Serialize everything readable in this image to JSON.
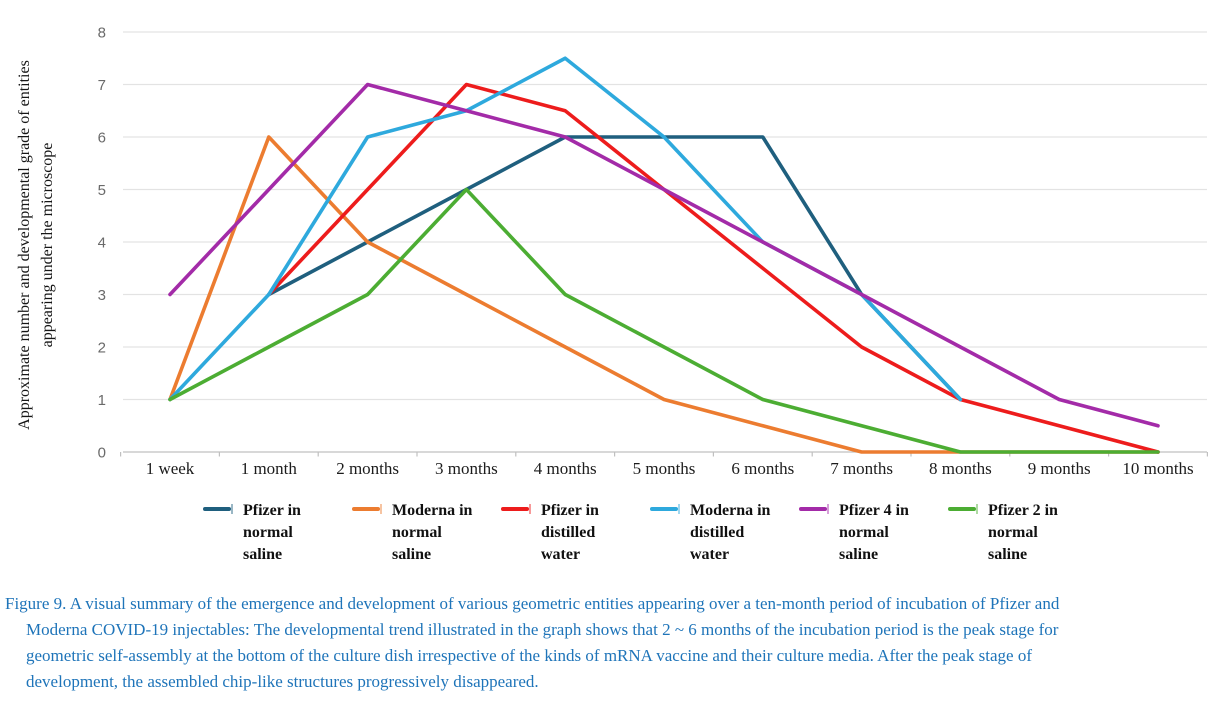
{
  "figure": {
    "caption": {
      "color": "#1E74B9",
      "lines": [
        "Figure 9. A visual summary of the emergence and development of various geometric entities appearing over a ten-month period of incubation of Pfizer and",
        "Moderna COVID-19 injectables: The developmental trend illustrated in the graph shows that 2 ~ 6 months of the incubation period is the peak stage for",
        "geometric self-assembly at the bottom of the culture dish irrespective of the kinds of mRNA vaccine and their culture media. After the peak stage of",
        "development, the assembled chip-like structures progressively disappeared."
      ]
    }
  },
  "chart_data": {
    "type": "line",
    "title": "",
    "ylabel_line1": "Approximate number and developmental grade of entities",
    "ylabel_line2": "appearing under the microscope",
    "xlabel": "",
    "ylim": [
      0,
      8
    ],
    "yticks": [
      0,
      1,
      2,
      3,
      4,
      5,
      6,
      7,
      8
    ],
    "grid": true,
    "legend_position": "bottom",
    "axis_text_color": "#6A6A6A",
    "category_text_color": "#1C1C1C",
    "gridline_color": "#E3E3E3",
    "baseline_color": "#C0C0C0",
    "categories": [
      "1 week",
      "1 month",
      "2 months",
      "3 months",
      "4 months",
      "5 months",
      "6 months",
      "7 months",
      "8 months",
      "9 months",
      "10 months"
    ],
    "series": [
      {
        "name": "Pfizer in normal saline",
        "legend_lines": [
          "Pfizer in",
          "normal",
          "saline"
        ],
        "color": "#1F5F7E",
        "values": [
          null,
          3,
          4,
          5,
          6,
          6,
          6,
          3,
          1,
          null,
          null
        ]
      },
      {
        "name": "Moderna in normal saline",
        "legend_lines": [
          "Moderna in",
          "normal",
          "saline"
        ],
        "color": "#EC7C30",
        "values": [
          1,
          6,
          4,
          3,
          2,
          1,
          0.5,
          0,
          0,
          0,
          0
        ]
      },
      {
        "name": "Pfizer in distilled water",
        "legend_lines": [
          "Pfizer in",
          "distilled",
          "water"
        ],
        "color": "#ED1C1C",
        "values": [
          null,
          3,
          5,
          7,
          6.5,
          5,
          3.5,
          2,
          1,
          0.5,
          0
        ]
      },
      {
        "name": "Moderna in distilled water",
        "legend_lines": [
          "Moderna in",
          "distilled",
          "water"
        ],
        "color": "#2EA9DD",
        "values": [
          1,
          3,
          6,
          6.5,
          7.5,
          6,
          4,
          3,
          1,
          null,
          null
        ]
      },
      {
        "name": "Pfizer 4 in normal saline",
        "legend_lines": [
          "Pfizer 4 in",
          "normal",
          "saline"
        ],
        "color": "#A32BA8",
        "values": [
          3,
          5,
          7,
          6.5,
          6,
          5,
          4,
          3,
          2,
          1,
          0.5
        ]
      },
      {
        "name": "Pfizer 2 in normal saline",
        "legend_lines": [
          "Pfizer 2 in",
          "normal",
          "saline"
        ],
        "color": "#4CAD33",
        "values": [
          1,
          2,
          3,
          5,
          3,
          2,
          1,
          0.5,
          0,
          0,
          0
        ]
      }
    ]
  }
}
